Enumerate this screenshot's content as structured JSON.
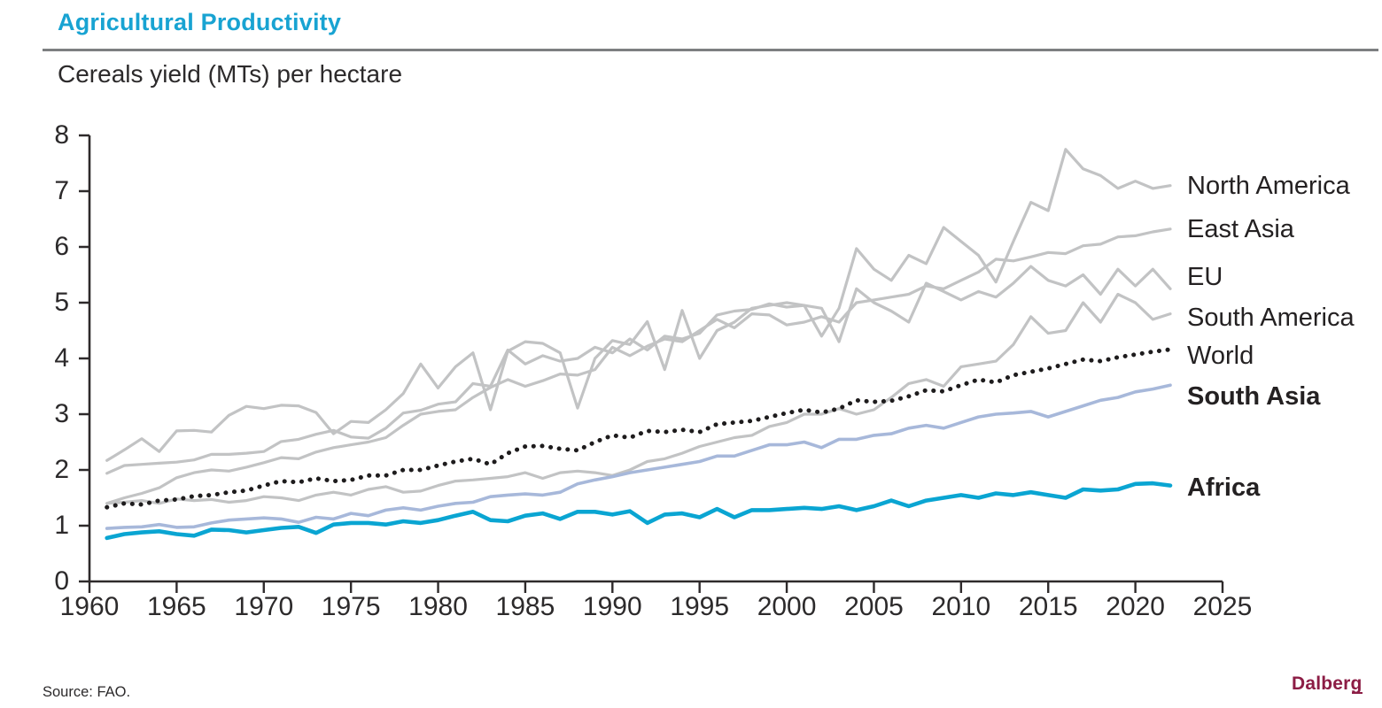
{
  "header": {
    "title": "Agricultural Productivity",
    "subtitle": "Cereals yield (MTs) per hectare"
  },
  "footer": {
    "source": "Source: FAO.",
    "logo": "Dalberg"
  },
  "colors": {
    "accent_cyan": "#18a3d2",
    "gray_line": "#c2c3c4",
    "world_dot": "#1e1c1d",
    "south_asia_line": "#a7b8da",
    "africa_line": "#0aa5d2",
    "axis": "#2e2a2b",
    "logo_maroon": "#8c1d45"
  },
  "chart_data": {
    "type": "line",
    "title": "Agricultural Productivity",
    "subtitle": "Cereals yield (MTs) per hectare",
    "xlabel": "",
    "ylabel": "Cereals yield (MTs) per hectare",
    "x_start_year": 1961,
    "x_end_year": 2022,
    "xlim": [
      1960,
      2025
    ],
    "ylim": [
      0,
      8
    ],
    "x_ticks": [
      1960,
      1965,
      1970,
      1975,
      1980,
      1985,
      1990,
      1995,
      2000,
      2005,
      2010,
      2015,
      2020,
      2025
    ],
    "y_ticks": [
      0,
      1,
      2,
      3,
      4,
      5,
      6,
      7,
      8
    ],
    "grid": false,
    "legend_position": "direct-labels-right",
    "series": [
      {
        "name": "North America",
        "color": "#c2c3c4",
        "line": "solid",
        "width": 3.2,
        "bold_label": false,
        "values": [
          2.17,
          2.36,
          2.56,
          2.33,
          2.7,
          2.71,
          2.68,
          2.98,
          3.14,
          3.1,
          3.16,
          3.15,
          3.03,
          2.65,
          2.87,
          2.85,
          3.08,
          3.37,
          3.9,
          3.47,
          3.85,
          4.1,
          3.08,
          4.13,
          4.3,
          4.27,
          4.1,
          3.11,
          4.0,
          4.32,
          4.25,
          4.66,
          3.8,
          4.86,
          4.0,
          4.5,
          4.65,
          4.9,
          4.95,
          5.0,
          4.95,
          4.4,
          4.9,
          5.97,
          5.6,
          5.4,
          5.85,
          5.7,
          6.35,
          6.1,
          5.85,
          5.37,
          6.1,
          6.8,
          6.65,
          7.75,
          7.4,
          7.28,
          7.05,
          7.18,
          7.05,
          7.1
        ]
      },
      {
        "name": "East Asia",
        "color": "#c2c3c4",
        "line": "solid",
        "width": 3.2,
        "bold_label": false,
        "values": [
          1.4,
          1.5,
          1.58,
          1.68,
          1.86,
          1.95,
          2.0,
          1.98,
          2.05,
          2.13,
          2.22,
          2.2,
          2.32,
          2.4,
          2.45,
          2.5,
          2.58,
          2.8,
          3.0,
          3.05,
          3.08,
          3.3,
          3.48,
          3.62,
          3.5,
          3.6,
          3.72,
          3.7,
          3.8,
          4.2,
          4.05,
          4.22,
          4.35,
          4.3,
          4.5,
          4.7,
          4.55,
          4.8,
          4.78,
          4.6,
          4.65,
          4.75,
          4.65,
          5.0,
          5.05,
          5.1,
          5.15,
          5.3,
          5.25,
          5.4,
          5.55,
          5.78,
          5.75,
          5.82,
          5.9,
          5.88,
          6.02,
          6.05,
          6.18,
          6.2,
          6.27,
          6.32
        ]
      },
      {
        "name": "EU",
        "color": "#c2c3c4",
        "line": "solid",
        "width": 3.2,
        "bold_label": false,
        "values": [
          1.94,
          2.08,
          2.1,
          2.12,
          2.14,
          2.18,
          2.28,
          2.28,
          2.3,
          2.33,
          2.51,
          2.55,
          2.64,
          2.71,
          2.59,
          2.57,
          2.75,
          3.02,
          3.07,
          3.18,
          3.22,
          3.55,
          3.5,
          4.15,
          3.9,
          4.05,
          3.95,
          4.0,
          4.2,
          4.1,
          4.35,
          4.15,
          4.4,
          4.35,
          4.45,
          4.78,
          4.85,
          4.88,
          4.98,
          4.92,
          4.95,
          4.9,
          4.3,
          5.25,
          5.0,
          4.85,
          4.65,
          5.35,
          5.2,
          5.05,
          5.2,
          5.1,
          5.35,
          5.65,
          5.4,
          5.3,
          5.5,
          5.15,
          5.6,
          5.3,
          5.6,
          5.25
        ]
      },
      {
        "name": "South America",
        "color": "#c2c3c4",
        "line": "solid",
        "width": 3.2,
        "bold_label": false,
        "values": [
          1.4,
          1.42,
          1.45,
          1.4,
          1.48,
          1.45,
          1.47,
          1.42,
          1.45,
          1.52,
          1.5,
          1.45,
          1.55,
          1.6,
          1.55,
          1.65,
          1.7,
          1.6,
          1.62,
          1.72,
          1.8,
          1.82,
          1.85,
          1.88,
          1.95,
          1.85,
          1.95,
          1.98,
          1.95,
          1.9,
          2.0,
          2.15,
          2.2,
          2.3,
          2.42,
          2.5,
          2.58,
          2.62,
          2.78,
          2.85,
          3.0,
          3.0,
          3.1,
          3.0,
          3.08,
          3.3,
          3.55,
          3.62,
          3.5,
          3.85,
          3.9,
          3.95,
          4.25,
          4.75,
          4.45,
          4.5,
          5.0,
          4.65,
          5.15,
          5.0,
          4.7,
          4.8
        ]
      },
      {
        "name": "World",
        "color": "#1e1c1d",
        "line": "dotted",
        "width": 5,
        "bold_label": false,
        "values": [
          1.33,
          1.4,
          1.38,
          1.45,
          1.47,
          1.53,
          1.55,
          1.6,
          1.63,
          1.72,
          1.8,
          1.78,
          1.85,
          1.8,
          1.82,
          1.9,
          1.9,
          2.0,
          2.0,
          2.08,
          2.15,
          2.2,
          2.1,
          2.3,
          2.42,
          2.43,
          2.38,
          2.35,
          2.5,
          2.62,
          2.58,
          2.7,
          2.68,
          2.72,
          2.68,
          2.82,
          2.85,
          2.88,
          2.95,
          3.02,
          3.08,
          3.03,
          3.1,
          3.25,
          3.22,
          3.24,
          3.32,
          3.43,
          3.41,
          3.52,
          3.62,
          3.57,
          3.7,
          3.76,
          3.82,
          3.9,
          3.98,
          3.95,
          4.02,
          4.07,
          4.12,
          4.16
        ]
      },
      {
        "name": "South Asia",
        "color": "#a7b8da",
        "line": "solid",
        "width": 3.6,
        "bold_label": true,
        "values": [
          0.95,
          0.97,
          0.98,
          1.02,
          0.97,
          0.98,
          1.05,
          1.1,
          1.12,
          1.14,
          1.12,
          1.06,
          1.15,
          1.12,
          1.22,
          1.18,
          1.28,
          1.32,
          1.28,
          1.35,
          1.4,
          1.42,
          1.52,
          1.55,
          1.57,
          1.55,
          1.6,
          1.75,
          1.82,
          1.88,
          1.95,
          2.0,
          2.05,
          2.1,
          2.15,
          2.25,
          2.25,
          2.35,
          2.45,
          2.45,
          2.5,
          2.4,
          2.55,
          2.55,
          2.62,
          2.65,
          2.75,
          2.8,
          2.75,
          2.85,
          2.95,
          3.0,
          3.02,
          3.05,
          2.95,
          3.05,
          3.15,
          3.25,
          3.3,
          3.4,
          3.45,
          3.52
        ]
      },
      {
        "name": "Africa",
        "color": "#0aa5d2",
        "line": "solid",
        "width": 4.6,
        "bold_label": true,
        "values": [
          0.78,
          0.85,
          0.88,
          0.9,
          0.85,
          0.82,
          0.93,
          0.92,
          0.88,
          0.92,
          0.96,
          0.98,
          0.87,
          1.02,
          1.05,
          1.05,
          1.02,
          1.08,
          1.05,
          1.1,
          1.18,
          1.25,
          1.1,
          1.08,
          1.18,
          1.22,
          1.12,
          1.25,
          1.25,
          1.2,
          1.26,
          1.05,
          1.2,
          1.22,
          1.15,
          1.3,
          1.15,
          1.28,
          1.28,
          1.3,
          1.32,
          1.3,
          1.35,
          1.28,
          1.35,
          1.45,
          1.35,
          1.45,
          1.5,
          1.55,
          1.5,
          1.58,
          1.55,
          1.6,
          1.55,
          1.5,
          1.65,
          1.63,
          1.65,
          1.75,
          1.76,
          1.72
        ]
      }
    ]
  }
}
